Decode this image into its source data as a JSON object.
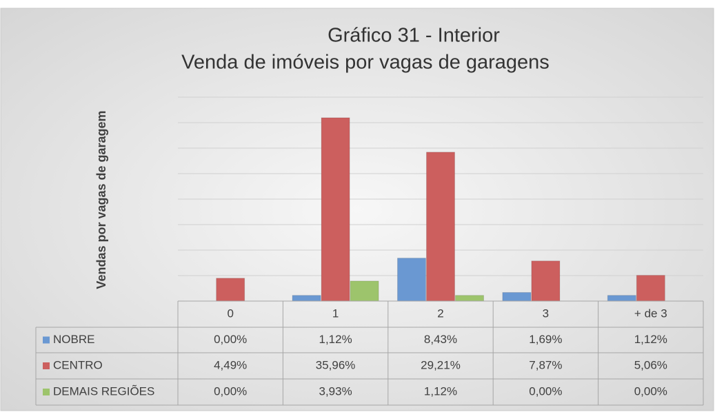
{
  "chart_data": {
    "type": "bar",
    "title": "Gráfico 31 - Interior",
    "subtitle": "Venda de imóveis por vagas de garagens",
    "y_label": "Vendas por vagas de garagem",
    "categories": [
      "0",
      "1",
      "2",
      "3",
      "+ de 3"
    ],
    "series": [
      {
        "name": "NOBRE",
        "color": "#6a98d2",
        "values": [
          0,
          1.12,
          8.43,
          1.69,
          1.12
        ],
        "value_labels": [
          "0,00%",
          "1,12%",
          "8,43%",
          "1,69%",
          "1,12%"
        ]
      },
      {
        "name": "CENTRO",
        "color": "#cc5f5e",
        "values": [
          4.49,
          35.96,
          29.21,
          7.87,
          5.06
        ],
        "value_labels": [
          "4,49%",
          "35,96%",
          "29,21%",
          "7,87%",
          "5,06%"
        ]
      },
      {
        "name": "DEMAIS REGIÕES",
        "color": "#9dc46c",
        "values": [
          0,
          3.93,
          1.12,
          0,
          0
        ],
        "value_labels": [
          "0,00%",
          "3,93%",
          "1,12%",
          "0,00%",
          "0,00%"
        ]
      }
    ],
    "ylim": [
      0,
      40
    ],
    "yticks": [
      0,
      5,
      10,
      15,
      20,
      25,
      30,
      35,
      40
    ],
    "grid": true
  }
}
